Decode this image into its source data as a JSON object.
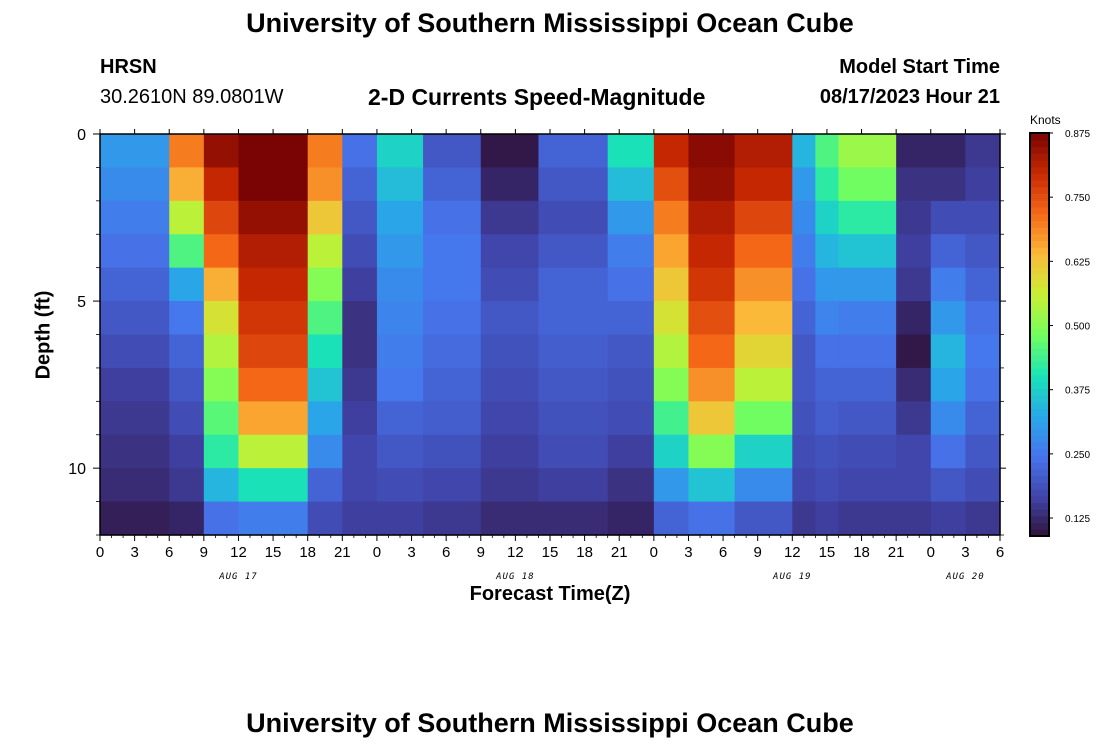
{
  "header": {
    "title": "University of Southern Mississippi Ocean Cube",
    "station": "HRSN",
    "coordinates": "30.2610N  89.0801W",
    "subtitle": "2-D Currents Speed-Magnitude",
    "model_label": "Model Start Time",
    "model_value": "08/17/2023 Hour 21"
  },
  "footer": {
    "title": "University of Southern Mississippi Ocean Cube"
  },
  "chart_data": {
    "type": "heatmap",
    "title": "2-D Currents Speed-Magnitude",
    "xlabel": "Forecast Time(Z)",
    "ylabel": "Depth (ft)",
    "x_unit": "hours since 2023-08-17 00Z",
    "xlim": [
      0,
      78
    ],
    "ylim": [
      0,
      12
    ],
    "x_ticks": [
      0,
      3,
      6,
      9,
      12,
      15,
      18,
      21,
      24,
      27,
      30,
      33,
      36,
      39,
      42,
      45,
      48,
      51,
      54,
      57,
      60,
      63,
      66,
      69,
      72,
      75,
      78
    ],
    "x_tick_labels": [
      "0",
      "3",
      "6",
      "9",
      "12",
      "15",
      "18",
      "21",
      "0",
      "3",
      "6",
      "9",
      "12",
      "15",
      "18",
      "21",
      "0",
      "3",
      "6",
      "9",
      "12",
      "15",
      "18",
      "21",
      "0",
      "3",
      "6"
    ],
    "date_labels": [
      {
        "hour": 12,
        "text": "AUG 17"
      },
      {
        "hour": 36,
        "text": "AUG 18"
      },
      {
        "hour": 60,
        "text": "AUG 19"
      },
      {
        "hour": 75,
        "text": "AUG 20"
      }
    ],
    "y_ticks": [
      0,
      5,
      10
    ],
    "y_tick_labels": [
      "0",
      "5",
      "10"
    ],
    "colorbar": {
      "unit": "Knots",
      "min": 0.09,
      "max": 0.875,
      "ticks": [
        0.125,
        0.25,
        0.375,
        0.5,
        0.625,
        0.75,
        0.875
      ],
      "tick_labels": [
        "0.125",
        "0.250",
        "0.375",
        "0.500",
        "0.625",
        "0.750",
        "0.875"
      ]
    },
    "depth_levels_ft": [
      0.5,
      1.5,
      2.5,
      3.5,
      4.5,
      5.5,
      6.5,
      7.5,
      8.5,
      9.5,
      10.5,
      11.5
    ],
    "time_columns": [
      "0-6",
      "6-9",
      "9-12",
      "12-18",
      "18-21",
      "21-24",
      "24-28",
      "28-33",
      "33-38",
      "38-44",
      "44-48",
      "48-51",
      "51-55",
      "55-60",
      "60-62",
      "62-64",
      "64-69",
      "69-72",
      "72-75",
      "75-78"
    ],
    "values_knots": [
      [
        0.3,
        0.7,
        0.85,
        0.88,
        0.7,
        0.24,
        0.38,
        0.2,
        0.1,
        0.22,
        0.4,
        0.8,
        0.86,
        0.82,
        0.34,
        0.45,
        0.52,
        0.12,
        0.12,
        0.15
      ],
      [
        0.28,
        0.65,
        0.8,
        0.88,
        0.68,
        0.22,
        0.35,
        0.22,
        0.12,
        0.2,
        0.35,
        0.75,
        0.85,
        0.8,
        0.3,
        0.42,
        0.48,
        0.14,
        0.14,
        0.16
      ],
      [
        0.26,
        0.55,
        0.76,
        0.85,
        0.62,
        0.2,
        0.32,
        0.24,
        0.15,
        0.18,
        0.3,
        0.7,
        0.82,
        0.76,
        0.28,
        0.38,
        0.42,
        0.15,
        0.18,
        0.18
      ],
      [
        0.24,
        0.45,
        0.72,
        0.82,
        0.55,
        0.18,
        0.3,
        0.25,
        0.17,
        0.2,
        0.26,
        0.66,
        0.8,
        0.72,
        0.26,
        0.34,
        0.36,
        0.16,
        0.22,
        0.2
      ],
      [
        0.22,
        0.32,
        0.65,
        0.8,
        0.5,
        0.16,
        0.28,
        0.25,
        0.18,
        0.22,
        0.24,
        0.62,
        0.78,
        0.68,
        0.24,
        0.3,
        0.3,
        0.15,
        0.26,
        0.22
      ],
      [
        0.2,
        0.25,
        0.58,
        0.78,
        0.45,
        0.14,
        0.27,
        0.24,
        0.2,
        0.22,
        0.22,
        0.58,
        0.75,
        0.64,
        0.22,
        0.27,
        0.26,
        0.12,
        0.3,
        0.24
      ],
      [
        0.18,
        0.22,
        0.54,
        0.76,
        0.4,
        0.14,
        0.26,
        0.23,
        0.19,
        0.21,
        0.2,
        0.54,
        0.72,
        0.6,
        0.2,
        0.24,
        0.24,
        0.1,
        0.34,
        0.25
      ],
      [
        0.16,
        0.2,
        0.5,
        0.72,
        0.36,
        0.15,
        0.25,
        0.22,
        0.18,
        0.2,
        0.19,
        0.5,
        0.68,
        0.55,
        0.2,
        0.22,
        0.22,
        0.13,
        0.32,
        0.24
      ],
      [
        0.15,
        0.18,
        0.46,
        0.66,
        0.32,
        0.16,
        0.22,
        0.21,
        0.17,
        0.19,
        0.18,
        0.44,
        0.62,
        0.48,
        0.19,
        0.21,
        0.2,
        0.15,
        0.28,
        0.22
      ],
      [
        0.14,
        0.16,
        0.42,
        0.55,
        0.28,
        0.17,
        0.2,
        0.19,
        0.16,
        0.18,
        0.16,
        0.38,
        0.5,
        0.38,
        0.18,
        0.19,
        0.18,
        0.17,
        0.24,
        0.2
      ],
      [
        0.13,
        0.15,
        0.34,
        0.4,
        0.22,
        0.17,
        0.18,
        0.17,
        0.15,
        0.16,
        0.14,
        0.3,
        0.36,
        0.28,
        0.17,
        0.18,
        0.17,
        0.17,
        0.2,
        0.18
      ],
      [
        0.11,
        0.12,
        0.24,
        0.26,
        0.18,
        0.16,
        0.16,
        0.15,
        0.13,
        0.13,
        0.12,
        0.22,
        0.24,
        0.2,
        0.15,
        0.16,
        0.15,
        0.15,
        0.16,
        0.15
      ]
    ]
  }
}
